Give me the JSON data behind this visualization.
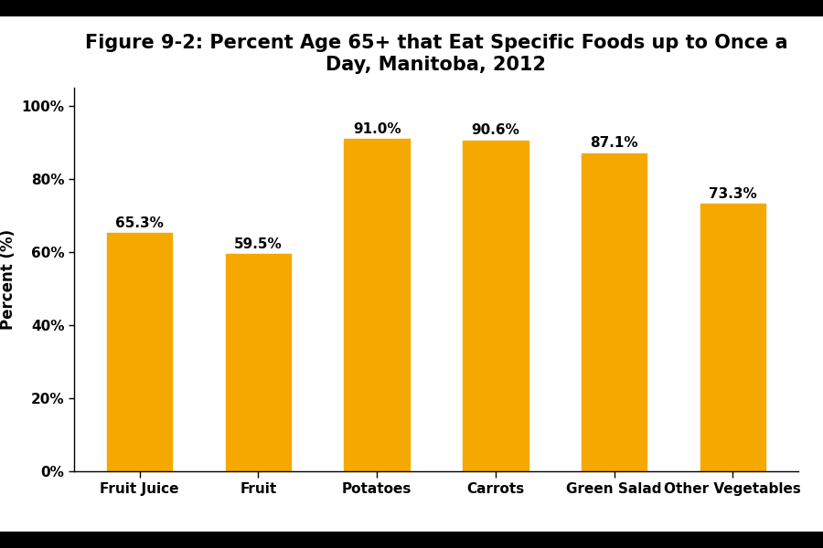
{
  "title": "Figure 9-2: Percent Age 65+ that Eat Specific Foods up to Once a\nDay, Manitoba, 2012",
  "categories": [
    "Fruit Juice",
    "Fruit",
    "Potatoes",
    "Carrots",
    "Green Salad",
    "Other Vegetables"
  ],
  "values": [
    65.3,
    59.5,
    91.0,
    90.6,
    87.1,
    73.3
  ],
  "bar_color": "#F5A800",
  "ylabel": "Percent (%)",
  "yticks": [
    0,
    20,
    40,
    60,
    80,
    100
  ],
  "ytick_labels": [
    "0%",
    "20%",
    "40%",
    "60%",
    "80%",
    "100%"
  ],
  "ylim": [
    0,
    105
  ],
  "background_color": "#ffffff",
  "title_fontsize": 15,
  "label_fontsize": 12,
  "tick_fontsize": 11,
  "value_fontsize": 11,
  "top_bar_height": 0.03,
  "bottom_bar_height": 0.03
}
